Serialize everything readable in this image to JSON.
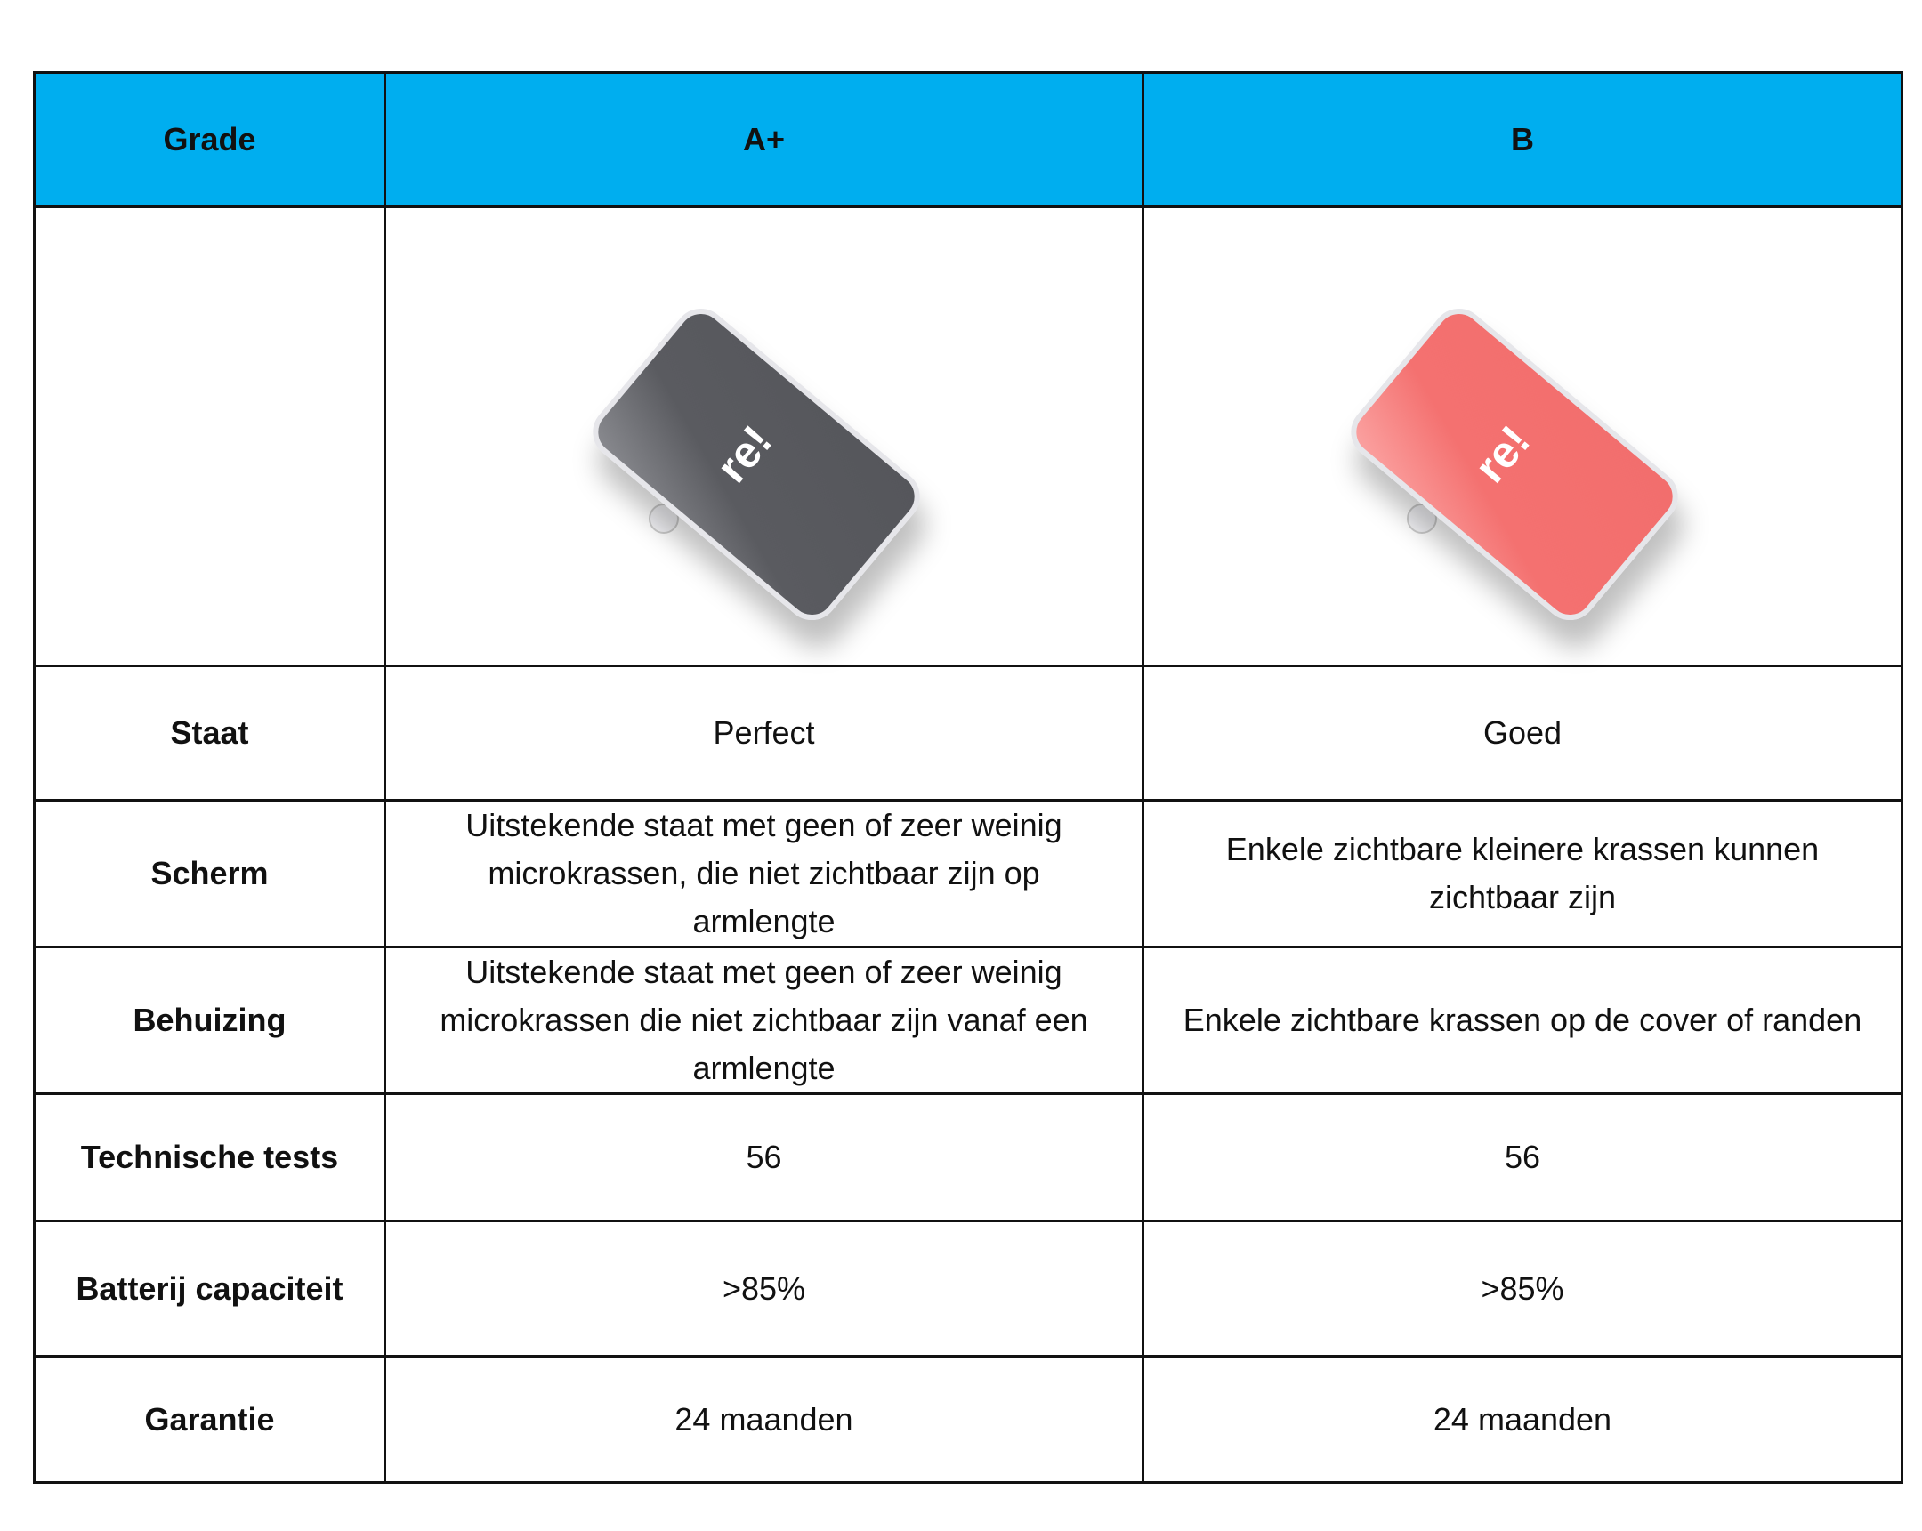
{
  "table": {
    "header": [
      "Grade",
      "A+",
      "B"
    ],
    "images": [
      {
        "icon": "phone-grade-a-plus-dark-grey",
        "color": "#5a5b60",
        "logo": "re!"
      },
      {
        "icon": "phone-grade-b-coral",
        "color": "#f47170",
        "logo": "re!"
      }
    ],
    "rows": [
      {
        "label": "Staat",
        "a": "Perfect",
        "b": "Goed"
      },
      {
        "label": "Scherm",
        "a": "Uitstekende staat met geen of zeer weinig microkrassen, die niet zichtbaar zijn op armlengte",
        "b": "Enkele zichtbare kleinere krassen kunnen zichtbaar zijn"
      },
      {
        "label": "Behuizing",
        "a": "Uitstekende staat met geen of zeer weinig microkrassen die niet zichtbaar zijn vanaf een armlengte",
        "b": "Enkele zichtbare krassen op de cover of randen"
      },
      {
        "label": "Technische tests",
        "a": "56",
        "b": "56"
      },
      {
        "label": "Batterij capaciteit",
        "a": ">85%",
        "b": ">85%"
      },
      {
        "label": "Garantie",
        "a": "24 maanden",
        "b": "24 maanden"
      }
    ],
    "header_color": "#00AEEF"
  }
}
